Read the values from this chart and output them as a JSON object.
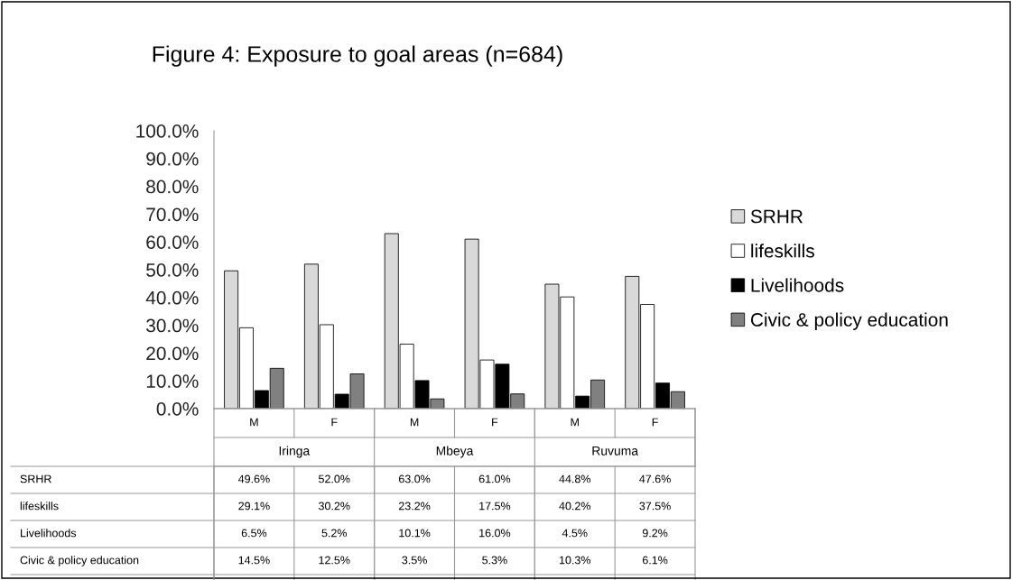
{
  "chart_data": {
    "type": "bar",
    "title": "Figure 4: Exposure to goal areas (n=684)",
    "categories": [
      "M",
      "F",
      "M",
      "F",
      "M",
      "F"
    ],
    "annotations": [
      "Iringa",
      "Mbeya",
      "Ruvuma"
    ],
    "series": [
      {
        "name": "SRHR",
        "color": "#d9d9d9",
        "values": [
          49.6,
          52.0,
          63.0,
          61.0,
          44.8,
          47.6
        ],
        "value_labels": [
          "49.6%",
          "52.0%",
          "63.0%",
          "61.0%",
          "44.8%",
          "47.6%"
        ]
      },
      {
        "name": "lifeskills",
        "color": "#ffffff",
        "values": [
          29.1,
          30.2,
          23.2,
          17.5,
          40.2,
          37.5
        ],
        "value_labels": [
          "29.1%",
          "30.2%",
          "23.2%",
          "17.5%",
          "40.2%",
          "37.5%"
        ]
      },
      {
        "name": "Livelihoods",
        "color": "#000000",
        "values": [
          6.5,
          5.2,
          10.1,
          16.0,
          4.5,
          9.2
        ],
        "value_labels": [
          "6.5%",
          "5.2%",
          "10.1%",
          "16.0%",
          "4.5%",
          "9.2%"
        ]
      },
      {
        "name": "Civic & policy education",
        "color": "#808080",
        "values": [
          14.5,
          12.5,
          3.5,
          5.3,
          10.3,
          6.1
        ],
        "value_labels": [
          "14.5%",
          "12.5%",
          "3.5%",
          "5.3%",
          "10.3%",
          "6.1%"
        ]
      }
    ],
    "ylim": [
      0,
      100
    ],
    "yticks": [
      {
        "value": 0,
        "label": "0.0%"
      },
      {
        "value": 10,
        "label": "10.0%"
      },
      {
        "value": 20,
        "label": "20.0%"
      },
      {
        "value": 30,
        "label": "30.0%"
      },
      {
        "value": 40,
        "label": "40.0%"
      },
      {
        "value": 50,
        "label": "50.0%"
      },
      {
        "value": 60,
        "label": "60.0%"
      },
      {
        "value": 70,
        "label": "70.0%"
      },
      {
        "value": 80,
        "label": "80.0%"
      },
      {
        "value": 90,
        "label": "90.0%"
      },
      {
        "value": 100,
        "label": "100.0%"
      }
    ],
    "grid": false,
    "legend": "right"
  }
}
